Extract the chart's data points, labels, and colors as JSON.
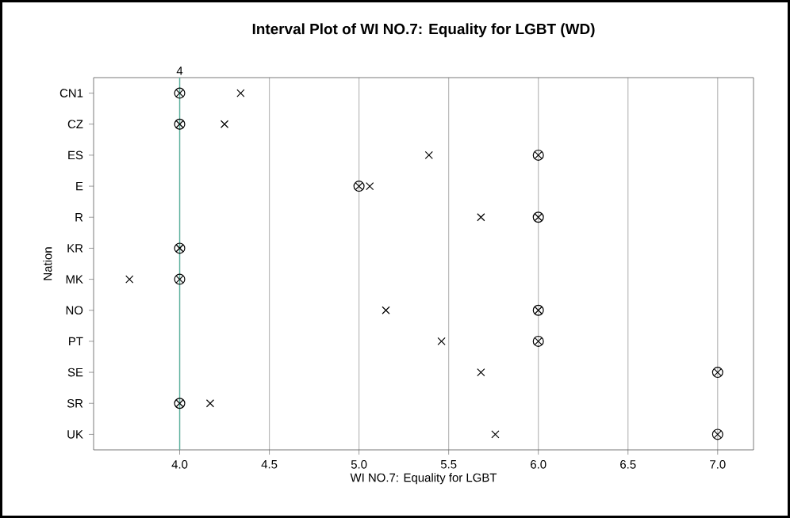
{
  "chart_data": {
    "type": "scatter",
    "title": "Interval Plot of WI NO.7: Equality for LGBT (WD)",
    "xlabel": "WI NO.7: Equality for LGBT",
    "ylabel": "Nation",
    "orientation": "horizontal",
    "categories": [
      "CN1",
      "CZ",
      "ES",
      "E",
      "R",
      "KR",
      "MK",
      "NO",
      "PT",
      "SE",
      "SR",
      "UK"
    ],
    "series": [
      {
        "color": "#000000",
        "marker": "circle",
        "values": [
          4,
          4,
          6,
          5,
          6,
          4,
          4,
          6,
          6,
          7,
          4,
          7
        ]
      },
      {
        "color": "#000000",
        "marker": "cross",
        "values": [
          4.34,
          4.25,
          5.39,
          5.06,
          5.68,
          4.0,
          3.72,
          5.15,
          5.46,
          5.68,
          4.17,
          5.76
        ]
      }
    ],
    "xlim": [
      3.52,
      7.2
    ],
    "xticks": [
      {
        "value": 4,
        "label": "4.0"
      },
      {
        "value": 4.5,
        "label": "4.5"
      },
      {
        "value": 5,
        "label": "5.0"
      },
      {
        "value": 5.5,
        "label": "5.5"
      },
      {
        "value": 6,
        "label": "6.0"
      },
      {
        "value": 6.5,
        "label": "6.5"
      },
      {
        "value": 7,
        "label": "7.0"
      }
    ],
    "grid": "x",
    "ref_lines": [
      {
        "axis": "x",
        "value": 4,
        "label": "4",
        "color": "#5fb3a0"
      }
    ]
  }
}
